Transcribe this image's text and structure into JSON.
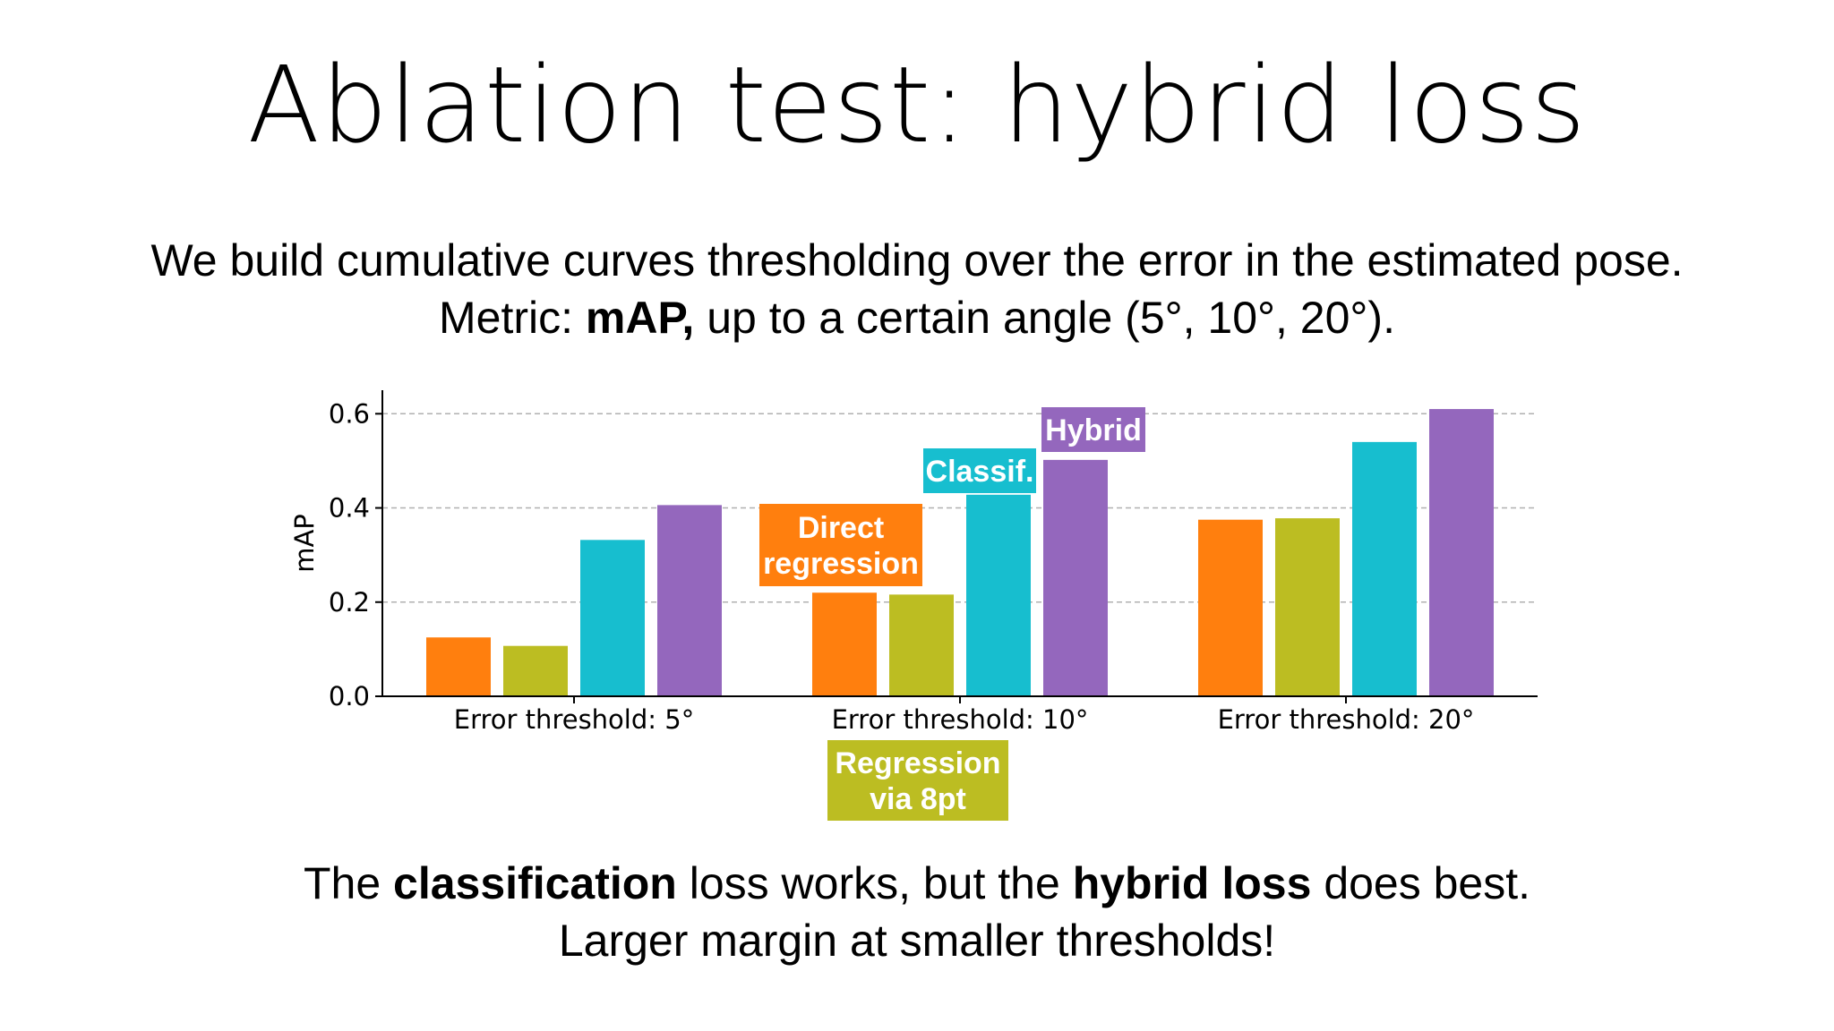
{
  "slide": {
    "title": "Ablation test: hybrid loss",
    "subtitle_line1": "We build cumulative curves thresholding over the error in the estimated pose.",
    "subtitle_line2_prefix": "Metric: ",
    "subtitle_line2_bold": "mAP,",
    "subtitle_line2_suffix": " up to a certain angle (5°, 10°, 20°).",
    "bottom_line1_a": "The ",
    "bottom_line1_b": "classification",
    "bottom_line1_c": " loss works, but the ",
    "bottom_line1_d": "hybrid loss",
    "bottom_line1_e": " does best.",
    "bottom_line2": "Larger margin at smaller thresholds!"
  },
  "chart_data": {
    "type": "bar",
    "ylabel": "mAP",
    "xlabel": "",
    "ylim": [
      0,
      0.65
    ],
    "yticks": [
      "0.0",
      "0.2",
      "0.4",
      "0.6"
    ],
    "ytick_values": [
      0.0,
      0.2,
      0.4,
      0.6
    ],
    "grid": "horizontal dashed",
    "categories": [
      "Error threshold: 5°",
      "Error threshold: 10°",
      "Error threshold: 20°"
    ],
    "series": [
      {
        "name": "Direct regression",
        "color": "#ff7f0e",
        "values": [
          0.125,
          0.22,
          0.375
        ]
      },
      {
        "name": "Regression via 8pt",
        "color": "#bcbd22",
        "values": [
          0.107,
          0.216,
          0.378
        ]
      },
      {
        "name": "Classif.",
        "color": "#17becf",
        "values": [
          0.332,
          0.428,
          0.54
        ]
      },
      {
        "name": "Hybrid",
        "color": "#9467bd",
        "values": [
          0.406,
          0.502,
          0.61
        ]
      }
    ],
    "callouts": [
      {
        "lines": [
          "Direct",
          "regression"
        ],
        "color": "#ff7f0e"
      },
      {
        "lines": [
          "Regression",
          "via 8pt"
        ],
        "color": "#bcbd22"
      },
      {
        "lines": [
          "Classif."
        ],
        "color": "#17becf"
      },
      {
        "lines": [
          "Hybrid"
        ],
        "color": "#9467bd"
      }
    ]
  }
}
